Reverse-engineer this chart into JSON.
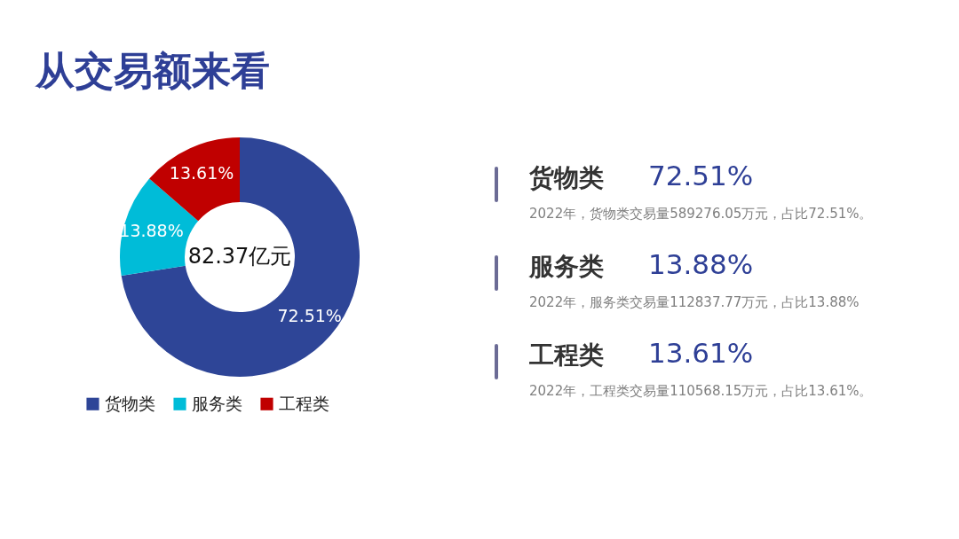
{
  "chart_data": [
    {
      "type": "donut",
      "title": "从交易额来看",
      "categories": [
        "货物类",
        "服务类",
        "工程类"
      ],
      "values": [
        72.51,
        13.88,
        13.61
      ],
      "colors": [
        "#2e4597",
        "#00bcd8",
        "#c00000"
      ],
      "value_labels": [
        "72.51%",
        "13.88%",
        "13.61%"
      ],
      "annotations": [
        "82.37亿元"
      ],
      "legend": "bottom"
    },
    {
      "type": "other",
      "annotations": [
        "货物类",
        "72.51%",
        "2022年，货物类交易量589276.05万元，占比72.51%。",
        "服务类",
        "13.88%",
        "2022年，服务类交易量112837.77万元，占比13.88%",
        "工程类",
        "13.61%",
        "2022年，工程类交易量110568.15万元，占比13.61%。"
      ]
    }
  ]
}
